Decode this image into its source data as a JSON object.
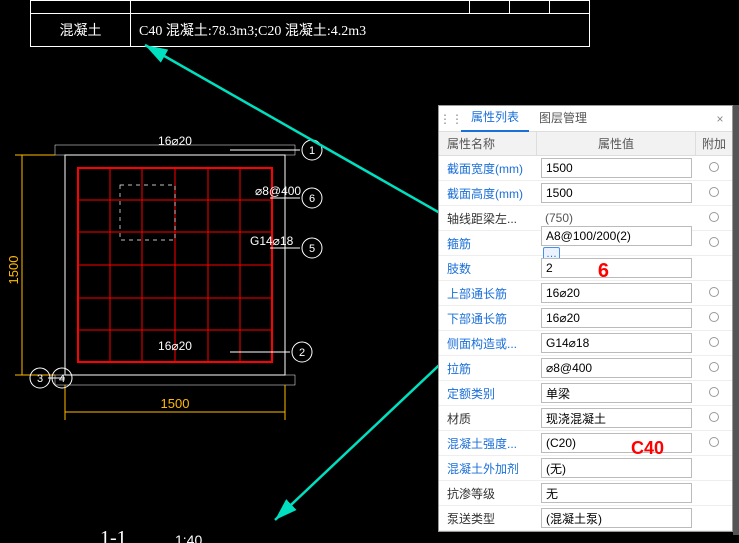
{
  "top_table": {
    "row_label": "混凝土",
    "row_value": "C40 混凝土:78.3m3;C20 混凝土:4.2m3"
  },
  "drawing": {
    "top_dim": "16⌀20",
    "stirrup": "⌀8@400",
    "side": "G14⌀18",
    "bottom_dim": "16⌀20",
    "width_dim": "1500",
    "height_dim": "1500",
    "bubble1": "1",
    "bubble2": "2",
    "bubble3": "3",
    "bubble4": "4",
    "bubble5": "5",
    "bubble6": "6",
    "section_name": "1-1",
    "section_scale": "1:40",
    "color_section": "#ff0000",
    "color_dim": "#ffbb00",
    "color_text": "#ffffff"
  },
  "panel": {
    "tab_props": "属性列表",
    "tab_layers": "图层管理",
    "head_name": "属性名称",
    "head_value": "属性值",
    "head_extra": "附加",
    "rows": [
      {
        "name": "截面宽度(mm)",
        "value": "1500",
        "input": true,
        "link": true,
        "radio": true
      },
      {
        "name": "截面高度(mm)",
        "value": "1500",
        "input": true,
        "link": true,
        "radio": true
      },
      {
        "name": "轴线距梁左...",
        "value": "(750)",
        "input": false,
        "link": false,
        "radio": true
      },
      {
        "name": "箍筋",
        "value": "A8@100/200(2)",
        "input": true,
        "link": true,
        "radio": true,
        "pill": "…"
      },
      {
        "name": "肢数",
        "value": "2",
        "input": true,
        "link": true,
        "radio": false
      },
      {
        "name": "上部通长筋",
        "value": "16⌀20",
        "input": true,
        "link": true,
        "radio": true
      },
      {
        "name": "下部通长筋",
        "value": "16⌀20",
        "input": true,
        "link": true,
        "radio": true
      },
      {
        "name": "侧面构造或...",
        "value": "G14⌀18",
        "input": true,
        "link": true,
        "radio": true
      },
      {
        "name": "拉筋",
        "value": "⌀8@400",
        "input": true,
        "link": true,
        "radio": true
      },
      {
        "name": "定额类别",
        "value": "单梁",
        "input": true,
        "link": true,
        "radio": true
      },
      {
        "name": "材质",
        "value": "现浇混凝土",
        "input": true,
        "link": false,
        "radio": true
      },
      {
        "name": "混凝土强度...",
        "value": "(C20)",
        "input": true,
        "link": true,
        "radio": true
      },
      {
        "name": "混凝土外加剂",
        "value": "(无)",
        "input": true,
        "link": true,
        "radio": false
      },
      {
        "name": "抗渗等级",
        "value": "无",
        "input": true,
        "link": false,
        "radio": false
      },
      {
        "name": "泵送类型",
        "value": "(混凝土泵)",
        "input": true,
        "link": false,
        "radio": false
      }
    ]
  },
  "annotations": {
    "six": "6",
    "c40": "C40"
  },
  "arrows": {
    "color": "#00e0c0"
  }
}
